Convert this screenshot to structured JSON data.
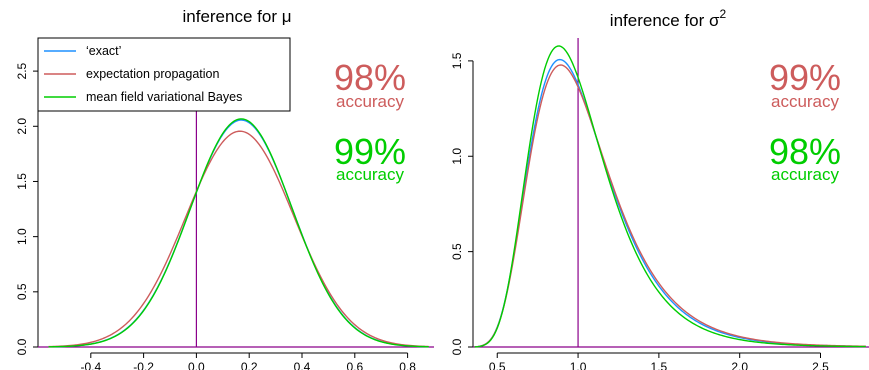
{
  "chart_data": [
    {
      "type": "line",
      "title": "inference for μ",
      "xlabel": "",
      "ylabel": "",
      "xlim": [
        -0.6,
        0.9
      ],
      "ylim": [
        0,
        2.8
      ],
      "xticks": [
        -0.4,
        -0.2,
        0.0,
        0.2,
        0.4,
        0.6,
        0.8
      ],
      "xtick_labels": [
        "-0.4",
        "-0.2",
        "0.0",
        "0.2",
        "0.4",
        "0.6",
        "0.8"
      ],
      "yticks": [
        0.0,
        0.5,
        1.0,
        1.5,
        2.0,
        2.5
      ],
      "ytick_labels": [
        "0.0",
        "0.5",
        "1.0",
        "1.5",
        "2.0",
        "2.5"
      ],
      "vline": 0.0,
      "hline": 0.0,
      "legend": {
        "position": "top-left",
        "entries": [
          "‘exact’",
          "expectation propagation",
          "mean field variational Bayes"
        ]
      },
      "annotations": [
        {
          "value": "98%",
          "label": "accuracy",
          "color": "#cd5c5c"
        },
        {
          "value": "99%",
          "label": "accuracy",
          "color": "#00cd00"
        }
      ],
      "series": [
        {
          "name": "‘exact’",
          "color": "#1e90ff",
          "distribution": "normal",
          "mean": 0.17,
          "sd": 0.194
        },
        {
          "name": "expectation propagation",
          "color": "#cd5c5c",
          "distribution": "normal",
          "mean": 0.165,
          "sd": 0.204
        },
        {
          "name": "mean field variational Bayes",
          "color": "#00cd00",
          "distribution": "normal",
          "mean": 0.17,
          "sd": 0.193
        }
      ]
    },
    {
      "type": "line",
      "title": "inference for σ",
      "title_superscript": "2",
      "xlabel": "",
      "ylabel": "",
      "xlim": [
        0.35,
        2.8
      ],
      "ylim": [
        0,
        1.62
      ],
      "xticks": [
        0.5,
        1.0,
        1.5,
        2.0,
        2.5
      ],
      "xtick_labels": [
        "0.5",
        "1.0",
        "1.5",
        "2.0",
        "2.5"
      ],
      "yticks": [
        0.0,
        0.5,
        1.0,
        1.5
      ],
      "ytick_labels": [
        "0.0",
        "0.5",
        "1.0",
        "1.5"
      ],
      "vline": 1.0,
      "hline": 0.0,
      "annotations": [
        {
          "value": "99%",
          "label": "accuracy",
          "color": "#cd5c5c"
        },
        {
          "value": "98%",
          "label": "accuracy",
          "color": "#00cd00"
        }
      ],
      "series": [
        {
          "name": "‘exact’",
          "color": "#1e90ff",
          "distribution": "inverse-gamma",
          "shape": 12.3,
          "scale": 11.8
        },
        {
          "name": "expectation propagation",
          "color": "#cd5c5c",
          "distribution": "inverse-gamma",
          "shape": 12.0,
          "scale": 11.6
        },
        {
          "name": "mean field variational Bayes",
          "color": "#00cd00",
          "distribution": "inverse-gamma",
          "shape": 13.2,
          "scale": 12.5
        }
      ]
    }
  ]
}
